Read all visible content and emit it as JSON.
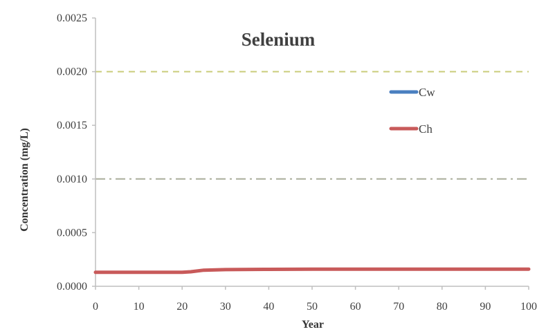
{
  "colors": {
    "cw": "#4a7fc0",
    "ch": "#c85a5a",
    "limit_upper": "#c9cc7a",
    "limit_lower": "#a9ad9a",
    "axis": "#bfbfbf"
  },
  "chart_data": {
    "type": "line",
    "title": "Selenium",
    "xlabel": "Year",
    "ylabel": "Concentration (mg/L)",
    "xlim": [
      0,
      100
    ],
    "ylim": [
      0,
      0.0025
    ],
    "x_ticks": [
      0,
      10,
      20,
      30,
      40,
      50,
      60,
      70,
      80,
      90,
      100
    ],
    "x_tick_labels": [
      "0",
      "10",
      "20",
      "30",
      "40",
      "50",
      "60",
      "70",
      "80",
      "90",
      "100"
    ],
    "y_ticks": [
      0,
      0.0005,
      0.001,
      0.0015,
      0.002,
      0.0025
    ],
    "y_tick_labels": [
      "0.0000",
      "0.0005",
      "0.0010",
      "0.0015",
      "0.0020",
      "0.0025"
    ],
    "grid": false,
    "legend_position": "top-right",
    "series": [
      {
        "name": "Cw",
        "x": [
          0,
          10,
          20,
          22,
          25,
          30,
          40,
          50,
          60,
          70,
          80,
          90,
          100
        ],
        "y": [
          0.00013,
          0.00013,
          0.00013,
          0.000135,
          0.00015,
          0.000155,
          0.000158,
          0.00016,
          0.00016,
          0.00016,
          0.00016,
          0.00016,
          0.00016
        ]
      },
      {
        "name": "Ch",
        "x": [
          0,
          10,
          20,
          22,
          25,
          30,
          40,
          50,
          60,
          70,
          80,
          90,
          100
        ],
        "y": [
          0.00013,
          0.00013,
          0.00013,
          0.000135,
          0.00015,
          0.000155,
          0.000158,
          0.00016,
          0.00016,
          0.00016,
          0.00016,
          0.00016,
          0.00016
        ]
      }
    ],
    "reference_lines": [
      {
        "y": 0.002,
        "style": "dashed"
      },
      {
        "y": 0.001,
        "style": "dash-dot"
      }
    ]
  }
}
